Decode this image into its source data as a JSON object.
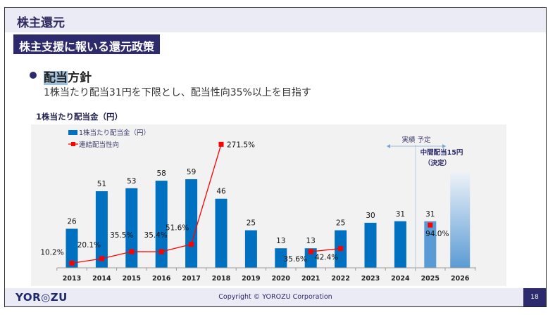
{
  "header": {
    "title": "株主還元"
  },
  "section": {
    "title": "株主支援に報いる還元政策"
  },
  "policy": {
    "heading_highlight": "配当",
    "heading_rest": "方針",
    "text": "1株当たり配当31円を下限とし、配当性向35%以上を目指す"
  },
  "chart_heading": "1株当たり配当金（円）",
  "chart_data": {
    "type": "bar+line",
    "categories": [
      "2013",
      "2014",
      "2015",
      "2016",
      "2017",
      "2018",
      "2019",
      "2020",
      "2021",
      "2022",
      "2023",
      "2024",
      "2025",
      "2026"
    ],
    "series": [
      {
        "name": "1株当たり配当金（円）",
        "type": "bar",
        "values": [
          26,
          51,
          53,
          58,
          59,
          46,
          25,
          13,
          13,
          25,
          30,
          31,
          31,
          null
        ],
        "value_labels": [
          "26",
          "51",
          "53",
          "58",
          "59",
          "46",
          "25",
          "13",
          "13",
          "25",
          "30",
          "31",
          "31",
          ""
        ],
        "color": "#0070c0",
        "forecast_color": "#5b9bd5"
      },
      {
        "name": "連結配当性向",
        "type": "line",
        "values": [
          10.2,
          20.1,
          35.5,
          35.4,
          51.6,
          271.5,
          null,
          null,
          35.6,
          42.4,
          null,
          null,
          94.0,
          null
        ],
        "value_labels": [
          "10.2%",
          "20.1%",
          "35.5%",
          "35.4%",
          "51.6%",
          "271.5%",
          "",
          "",
          "35.6%",
          "42.4%",
          "",
          "",
          "94.0%",
          ""
        ],
        "color": "#ff0000"
      }
    ],
    "legend": "top-left",
    "annotations": {
      "actual_forecast": "実績  予定",
      "interim": "中間配当15円",
      "interim_note": "（決定）"
    },
    "grid": false
  },
  "footer": {
    "logo": "YOR◎ZU",
    "copyright": "Copyright © YOROZU Corporation",
    "page": "18"
  }
}
